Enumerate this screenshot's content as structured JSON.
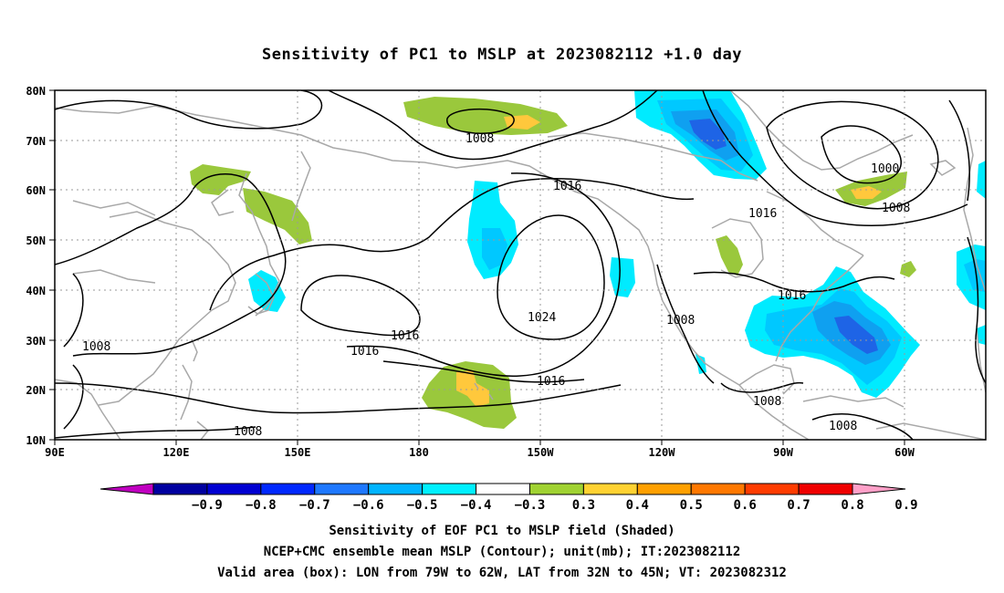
{
  "title": "Sensitivity of PC1 to MSLP at 2023082112 +1.0 day",
  "map": {
    "lon_ticks": [
      "90E",
      "120E",
      "150E",
      "180",
      "150W",
      "120W",
      "90W",
      "60W"
    ],
    "lat_ticks": [
      "80N",
      "70N",
      "60N",
      "50N",
      "40N",
      "30N",
      "20N",
      "10N"
    ],
    "contour_labels": [
      "1008",
      "1000",
      "1008",
      "1016",
      "1016",
      "1024",
      "1016",
      "1016",
      "1016",
      "1008",
      "1008",
      "1008",
      "1008",
      "1008",
      "1016"
    ],
    "valid_box": {
      "lon_west": -79,
      "lon_east": -62,
      "lat_south": 32,
      "lat_north": 45
    },
    "shading_colors": {
      "deep_blue": "#1e64e6",
      "mid_blue": "#0fa0f0",
      "light_blue": "#00c8ff",
      "cyan": "#00ebff",
      "green": "#9ac83c",
      "yellow": "#ffc83c"
    }
  },
  "colorbar": {
    "labels": [
      "−0.9",
      "−0.8",
      "−0.7",
      "−0.6",
      "−0.5",
      "−0.4",
      "−0.3",
      "0.3",
      "0.4",
      "0.5",
      "0.6",
      "0.7",
      "0.8",
      "0.9"
    ],
    "colors": [
      "#c000c0",
      "#0000a0",
      "#0000d2",
      "#0028ff",
      "#1e78ff",
      "#00b4ff",
      "#00f0ff",
      "#ffffff",
      "#a0d232",
      "#ffd232",
      "#ffa000",
      "#ff7800",
      "#ff3c00",
      "#f00000",
      "#ffa0c8"
    ]
  },
  "captions": {
    "line1": "Sensitivity of EOF PC1 to MSLP field (Shaded)",
    "line2": "NCEP+CMC ensemble mean MSLP (Contour); unit(mb); IT:2023082112",
    "line3": "Valid area (box): LON from 79W to 62W, LAT from 32N to 45N; VT: 2023082312"
  }
}
